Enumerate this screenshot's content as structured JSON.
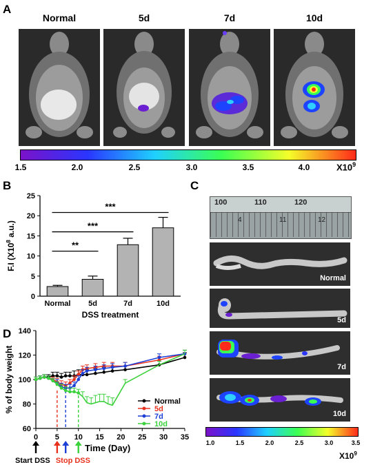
{
  "panel_a": {
    "letter": "A",
    "labels": [
      "Normal",
      "5d",
      "7d",
      "10d"
    ],
    "colorbar": {
      "ticks": [
        "1.5",
        "2.0",
        "2.5",
        "3.0",
        "3.5",
        "4.0"
      ],
      "unit": "X10",
      "unit_exp": "9",
      "colors": [
        "#7b12c9",
        "#2a36ff",
        "#1fd0ff",
        "#3bff52",
        "#f4ff2a",
        "#ff2a1a"
      ]
    }
  },
  "panel_c": {
    "letter": "C",
    "ruler_numbers": [
      "100",
      "110",
      "120"
    ],
    "ruler_sub": [
      "4",
      "11",
      "12"
    ],
    "colon_labels": [
      "Normal",
      "5d",
      "7d",
      "10d"
    ],
    "colorbar": {
      "ticks": [
        "1.0",
        "1.5",
        "2.0",
        "2.5",
        "3.0",
        "3.5"
      ],
      "unit": "X10",
      "unit_exp": "9"
    }
  },
  "panel_d_letter": "D",
  "annotations": {
    "start": "Start DSS",
    "stop": "Stop DSS"
  },
  "chart_data": [
    {
      "type": "bar",
      "panel": "B",
      "categories": [
        "Normal",
        "5d",
        "7d",
        "10d"
      ],
      "values": [
        2.4,
        4.2,
        12.8,
        17.0
      ],
      "errors": [
        0.3,
        0.8,
        1.6,
        2.6
      ],
      "ylabel": "F.I  (X10",
      "ylabel_exp": "8",
      "ylabel_tail": " a.u.)",
      "xlabel": "DSS treatment",
      "ylim": [
        0,
        25
      ],
      "yticks": [
        "0",
        "5",
        "10",
        "15",
        "20",
        "25"
      ],
      "significance": [
        {
          "from": "Normal",
          "to": "5d",
          "label": "**"
        },
        {
          "from": "Normal",
          "to": "7d",
          "label": "***"
        },
        {
          "from": "Normal",
          "to": "10d",
          "label": "***"
        }
      ]
    },
    {
      "type": "line",
      "panel": "D",
      "xlabel": "Time (Day)",
      "ylabel": "% of body weight",
      "xlim": [
        0,
        35
      ],
      "ylim": [
        60,
        140
      ],
      "xticks": [
        "0",
        "5",
        "10",
        "15",
        "20",
        "25",
        "30",
        "35"
      ],
      "yticks": [
        "60",
        "80",
        "100",
        "120",
        "140"
      ],
      "series": [
        {
          "name": "Normal",
          "color": "#000000",
          "x": [
            0,
            1,
            2,
            3,
            4,
            5,
            6,
            7,
            8,
            9,
            10,
            11,
            12,
            14,
            16,
            18,
            21,
            29,
            35
          ],
          "y": [
            100,
            101,
            102,
            102,
            103,
            103,
            102,
            103,
            103,
            103,
            104,
            104,
            104,
            105,
            106,
            107,
            108,
            112,
            118
          ],
          "err": [
            2,
            2,
            2,
            2,
            3,
            3,
            3,
            3,
            3,
            4,
            4,
            4,
            4,
            4,
            4,
            3,
            3,
            3,
            4
          ]
        },
        {
          "name": "5d",
          "color": "#e8321e",
          "x": [
            0,
            1,
            2,
            3,
            4,
            5,
            6,
            7,
            8,
            9,
            10,
            11,
            12,
            14,
            16,
            18,
            21,
            29,
            35
          ],
          "y": [
            100,
            101,
            102,
            101,
            100,
            98,
            96,
            95,
            97,
            100,
            104,
            108,
            109,
            110,
            111,
            111,
            111,
            116,
            121
          ],
          "err": [
            2,
            2,
            2,
            2,
            2,
            3,
            3,
            3,
            3,
            3,
            3,
            3,
            3,
            3,
            3,
            3,
            3,
            3,
            3
          ]
        },
        {
          "name": "7d",
          "color": "#1c3fd6",
          "x": [
            0,
            1,
            2,
            3,
            4,
            5,
            6,
            7,
            8,
            9,
            10,
            11,
            12,
            14,
            16,
            18,
            21,
            29,
            35
          ],
          "y": [
            100,
            101,
            102,
            101,
            99,
            97,
            94,
            93,
            93,
            95,
            100,
            105,
            107,
            108,
            109,
            110,
            111,
            118,
            121
          ],
          "err": [
            2,
            2,
            2,
            2,
            2,
            3,
            3,
            3,
            3,
            3,
            3,
            3,
            3,
            3,
            3,
            3,
            3,
            3,
            3
          ]
        },
        {
          "name": "10d",
          "color": "#3bd13b",
          "x": [
            0,
            1,
            2,
            3,
            4,
            5,
            6,
            7,
            8,
            9,
            10,
            11,
            12,
            13,
            14,
            15,
            16,
            17,
            18,
            21,
            29,
            35
          ],
          "y": [
            100,
            101,
            102,
            101,
            99,
            96,
            93,
            91,
            90,
            90,
            89,
            86,
            81,
            80,
            81,
            82,
            82,
            80,
            79,
            97,
            112,
            121
          ],
          "err": [
            2,
            2,
            2,
            2,
            2,
            2,
            3,
            3,
            3,
            3,
            3,
            4,
            5,
            5,
            6,
            6,
            6,
            6,
            6,
            3,
            3,
            3
          ]
        }
      ],
      "markers": [
        {
          "day": 0,
          "label": "start",
          "color": "#000000"
        },
        {
          "day": 5,
          "label": "stop-5d",
          "color": "#e8321e"
        },
        {
          "day": 7,
          "label": "stop-7d",
          "color": "#1c3fd6"
        },
        {
          "day": 10,
          "label": "stop-10d",
          "color": "#3bd13b"
        }
      ]
    }
  ]
}
